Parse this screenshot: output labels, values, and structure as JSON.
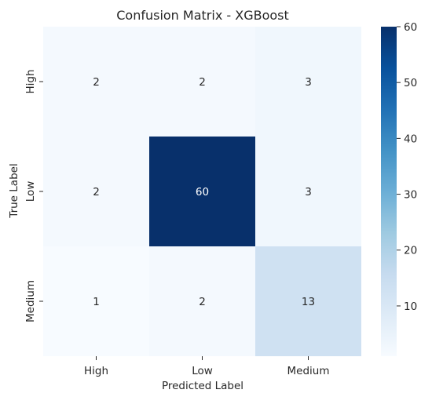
{
  "chart_data": {
    "type": "heatmap",
    "title": "Confusion Matrix - XGBoost",
    "xlabel": "Predicted Label",
    "ylabel": "True Label",
    "x_categories": [
      "High",
      "Low",
      "Medium"
    ],
    "y_categories": [
      "High",
      "Low",
      "Medium"
    ],
    "values": [
      [
        2,
        2,
        3
      ],
      [
        2,
        60,
        3
      ],
      [
        1,
        2,
        13
      ]
    ],
    "colorbar": {
      "colormap": "Blues",
      "range": [
        1,
        60
      ],
      "ticks": [
        10,
        20,
        30,
        40,
        50,
        60
      ]
    }
  }
}
